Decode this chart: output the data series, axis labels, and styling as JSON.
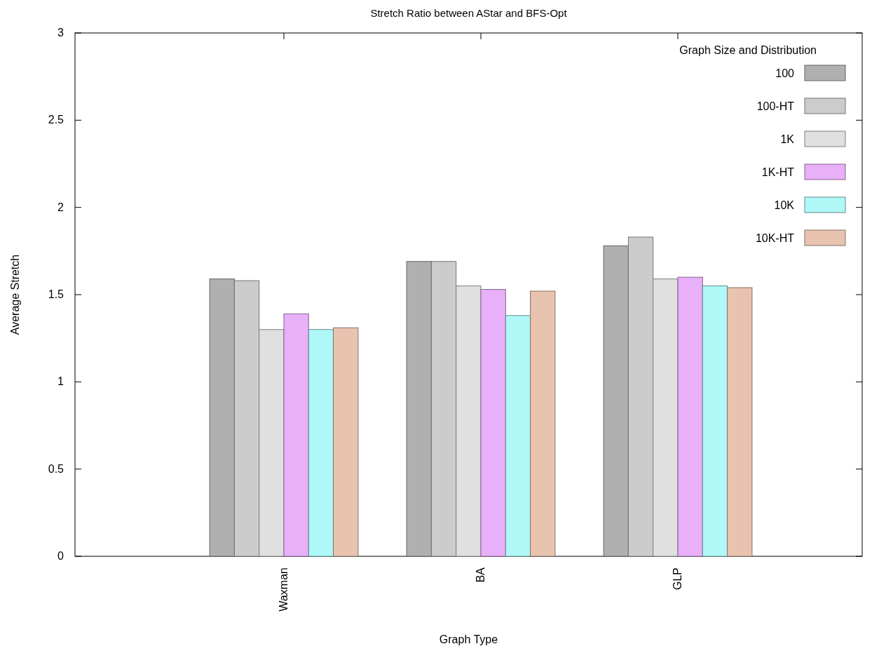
{
  "chart_data": {
    "type": "bar",
    "title": "Stretch Ratio between AStar and BFS-Opt",
    "xlabel": "Graph Type",
    "ylabel": "Average Stretch",
    "legend_title": "Graph Size and Distribution",
    "categories": [
      "Waxman",
      "BA",
      "GLP"
    ],
    "series": [
      {
        "name": "100",
        "color": "#b0b0b0",
        "values": [
          1.59,
          1.69,
          1.78
        ]
      },
      {
        "name": "100-HT",
        "color": "#cccccc",
        "values": [
          1.58,
          1.69,
          1.83
        ]
      },
      {
        "name": "1K",
        "color": "#e0e0e0",
        "values": [
          1.3,
          1.55,
          1.59
        ]
      },
      {
        "name": "1K-HT",
        "color": "#e8b0f8",
        "values": [
          1.39,
          1.53,
          1.6
        ]
      },
      {
        "name": "10K",
        "color": "#b0f8f8",
        "values": [
          1.3,
          1.38,
          1.55
        ]
      },
      {
        "name": "10K-HT",
        "color": "#e8c4b0",
        "values": [
          1.31,
          1.52,
          1.54
        ]
      }
    ],
    "ylim": [
      0,
      3
    ],
    "yticks": [
      0,
      0.5,
      1,
      1.5,
      2,
      2.5,
      3
    ],
    "grid": false,
    "legend": "top right"
  }
}
